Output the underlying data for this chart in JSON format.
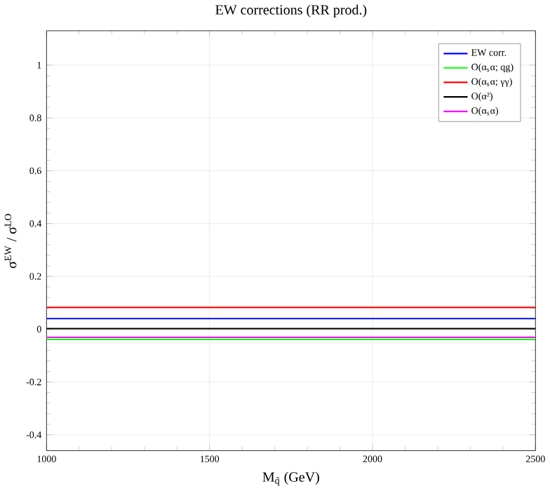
{
  "chart_data": {
    "type": "line",
    "title": "EW corrections (RR prod.)",
    "xlabel": "M$_{q̃}$ (GeV)",
    "ylabel": "σ$^{EW}$ / σ$^{LO}$",
    "x": [
      1000,
      2500
    ],
    "series": [
      {
        "name": "EW corr.",
        "color": "#0000ff",
        "values": [
          0.04,
          0.04
        ]
      },
      {
        "name": "O(α$_{s}$α; qg)",
        "color": "#00ff00",
        "values": [
          -0.039,
          -0.039
        ]
      },
      {
        "name": "O(α$_{s}$α; γγ)",
        "color": "#ff0000",
        "values": [
          0.082,
          0.082
        ]
      },
      {
        "name": "O(α²)",
        "color": "#000000",
        "values": [
          0.002,
          0.002
        ]
      },
      {
        "name": "O(α$_{s}$α)",
        "color": "#ff00ff",
        "values": [
          -0.031,
          -0.031
        ]
      }
    ],
    "xlim": [
      1000,
      2500
    ],
    "ylim": [
      -0.46,
      1.13
    ],
    "xticks": [
      1000,
      1500,
      2000,
      2500
    ],
    "yticks": [
      {
        "value": -0.4,
        "label": "-0.4"
      },
      {
        "value": -0.2,
        "label": "-0.2"
      },
      0,
      0.2,
      0.4,
      0.6,
      0.8,
      1
    ],
    "grid": true,
    "legend": "top right",
    "marker": "none",
    "line_style": "solid"
  }
}
